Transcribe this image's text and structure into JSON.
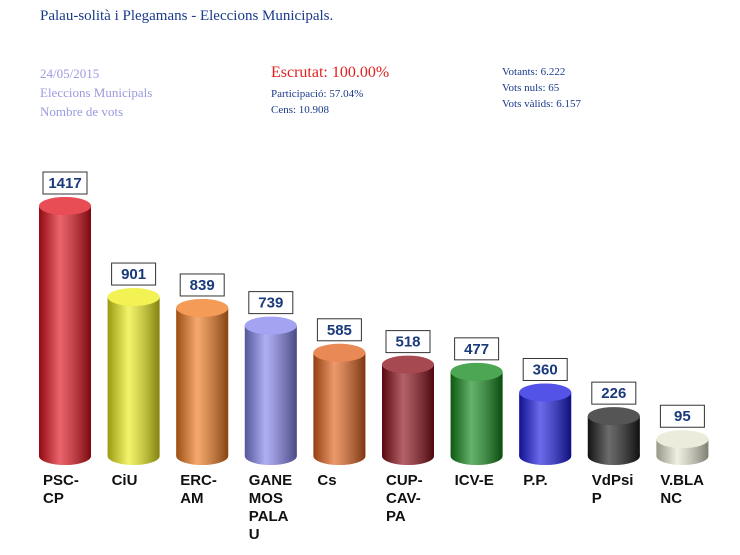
{
  "header": {
    "title": "Palau-solità i Plegamans - Eleccions Municipals.",
    "left": [
      "24/05/2015",
      "Eleccions Municipals",
      "Nombre de vots"
    ],
    "status": "Escrutat: 100.00%",
    "middle": [
      "Participació: 57.04%",
      "Cens: 10.908"
    ],
    "right": [
      "Votants: 6.222",
      "Vots nuls: 65",
      "Vots vàlids: 6.157"
    ]
  },
  "chart_data": {
    "type": "bar",
    "categories": [
      "PSC-CP",
      "CiU",
      "ERC-AM",
      "GANEMOS PALAU",
      "Cs",
      "CUP-CAV-PA",
      "ICV-E",
      "P.P.",
      "VdPsiP",
      "V.BLANC"
    ],
    "values": [
      1417,
      901,
      839,
      739,
      585,
      518,
      477,
      360,
      226,
      95
    ],
    "colors": [
      "#e0101c",
      "#eeee1c",
      "#f07a20",
      "#8484ee",
      "#e2621c",
      "#8a0c16",
      "#12881a",
      "#1a1ae0",
      "#1c1c1c",
      "#e6e6d2"
    ]
  }
}
